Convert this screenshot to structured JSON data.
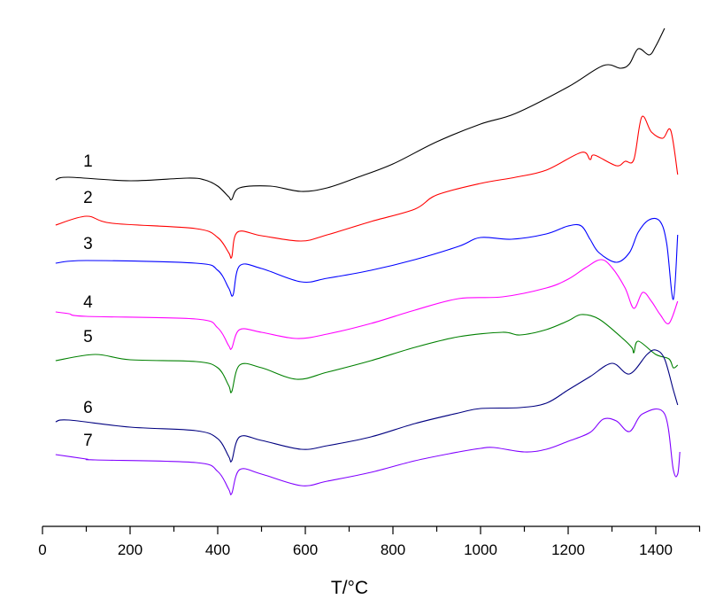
{
  "chart_data": {
    "type": "line",
    "title": "",
    "xlabel": "T/°C",
    "ylabel": "",
    "xlim": [
      0,
      1500
    ],
    "ylim": [
      0,
      594
    ],
    "y_units": "arbitrary (signal, offset per curve)",
    "grid": false,
    "legend": "inline labels at left",
    "xticks": [
      0,
      200,
      400,
      600,
      800,
      1000,
      1200,
      1400
    ],
    "xticklabels": [
      "0",
      "200",
      "400",
      "600",
      "800",
      "1000",
      "1200",
      "1400"
    ],
    "series": [
      {
        "name": "1",
        "color": "#000000",
        "label_at": [
          110,
          406
        ],
        "x": [
          30,
          60,
          200,
          330,
          370,
          400,
          425,
          432,
          450,
          520,
          590,
          650,
          720,
          800,
          900,
          1000,
          1080,
          1200,
          1280,
          1320,
          1340,
          1360,
          1385,
          1400,
          1420
        ],
        "y": [
          391,
          394,
          390,
          393,
          391,
          384,
          372,
          369,
          382,
          384,
          378,
          382,
          394,
          409,
          434,
          454,
          466,
          496,
          520,
          517,
          522,
          539,
          532,
          542,
          562
        ]
      },
      {
        "name": "2",
        "color": "#ff0000",
        "label_at": [
          110,
          365
        ],
        "x": [
          30,
          100,
          160,
          350,
          400,
          425,
          432,
          445,
          500,
          590,
          650,
          750,
          850,
          900,
          1000,
          1080,
          1150,
          1230,
          1250,
          1260,
          1310,
          1330,
          1350,
          1368,
          1390,
          1416,
          1434,
          1450
        ],
        "y": [
          340,
          350,
          342,
          336,
          326,
          309,
          304,
          332,
          328,
          322,
          329,
          344,
          358,
          374,
          387,
          394,
          402,
          422,
          414,
          419,
          407,
          412,
          414,
          462,
          445,
          438,
          447,
          397
        ]
      },
      {
        "name": "3",
        "color": "#0000ff",
        "label_at": [
          110,
          313
        ],
        "x": [
          30,
          100,
          350,
          400,
          425,
          435,
          450,
          500,
          590,
          650,
          750,
          850,
          950,
          1000,
          1070,
          1150,
          1200,
          1230,
          1250,
          1270,
          1310,
          1340,
          1360,
          1385,
          1410,
          1425,
          1440,
          1450
        ],
        "y": [
          297,
          300,
          297,
          289,
          269,
          261,
          294,
          291,
          276,
          280,
          289,
          301,
          316,
          326,
          324,
          330,
          339,
          339,
          324,
          309,
          298,
          309,
          332,
          346,
          344,
          319,
          256,
          329
        ]
      },
      {
        "name": "4",
        "color": "#ff00ff",
        "label_at": [
          110,
          247
        ],
        "x": [
          30,
          60,
          100,
          350,
          400,
          425,
          432,
          450,
          500,
          580,
          650,
          750,
          850,
          950,
          1050,
          1150,
          1200,
          1240,
          1275,
          1300,
          1330,
          1350,
          1370,
          1390,
          1410,
          1430,
          1450
        ],
        "y": [
          242,
          240,
          237,
          234,
          224,
          204,
          201,
          222,
          219,
          212,
          217,
          229,
          244,
          257,
          259,
          269,
          279,
          292,
          301,
          292,
          269,
          246,
          264,
          254,
          239,
          229,
          254
        ]
      },
      {
        "name": "5",
        "color": "#008000",
        "label_at": [
          110,
          208
        ],
        "x": [
          30,
          120,
          200,
          350,
          400,
          425,
          432,
          450,
          500,
          580,
          650,
          750,
          850,
          950,
          1050,
          1090,
          1150,
          1200,
          1230,
          1270,
          1320,
          1345,
          1350,
          1360,
          1400,
          1430,
          1440,
          1450
        ],
        "y": [
          187,
          194,
          188,
          186,
          179,
          159,
          152,
          182,
          179,
          166,
          174,
          187,
          202,
          214,
          219,
          216,
          222,
          232,
          239,
          234,
          214,
          202,
          196,
          209,
          194,
          189,
          179,
          182
        ]
      },
      {
        "name": "6",
        "color": "#000080",
        "label_at": [
          110,
          128
        ],
        "x": [
          30,
          60,
          200,
          350,
          400,
          425,
          432,
          450,
          500,
          590,
          650,
          750,
          850,
          950,
          1000,
          1090,
          1150,
          1200,
          1250,
          1300,
          1340,
          1380,
          1400,
          1420,
          1440,
          1450
        ],
        "y": [
          118,
          120,
          112,
          108,
          99,
          79,
          74,
          101,
          97,
          87,
          91,
          101,
          116,
          128,
          133,
          134,
          139,
          154,
          169,
          184,
          172,
          194,
          199,
          189,
          154,
          137
        ]
      },
      {
        "name": "7",
        "color": "#8000ff",
        "label_at": [
          110,
          91
        ],
        "x": [
          30,
          100,
          120,
          350,
          400,
          425,
          432,
          450,
          500,
          590,
          650,
          750,
          850,
          950,
          1000,
          1030,
          1100,
          1150,
          1200,
          1250,
          1280,
          1310,
          1340,
          1370,
          1420,
          1440,
          1450,
          1455
        ],
        "y": [
          81,
          76,
          75,
          72,
          62,
          42,
          37,
          64,
          59,
          46,
          51,
          61,
          74,
          84,
          88,
          89,
          84,
          87,
          96,
          106,
          121,
          119,
          107,
          127,
          127,
          64,
          59,
          84
        ]
      }
    ]
  }
}
